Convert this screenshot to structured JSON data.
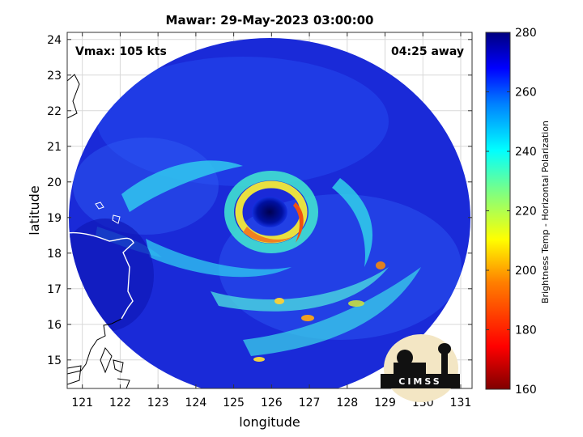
{
  "chart_data": {
    "type": "heatmap",
    "title": "Mawar: 29-May-2023 03:00:00",
    "xlabel": "longitude",
    "ylabel": "latitude",
    "xlim": [
      120.6,
      131.3
    ],
    "ylim": [
      14.2,
      24.2
    ],
    "xticks": [
      121,
      122,
      123,
      124,
      125,
      126,
      127,
      128,
      129,
      130,
      131
    ],
    "yticks": [
      15,
      16,
      17,
      18,
      19,
      20,
      21,
      22,
      23,
      24
    ],
    "grid": true,
    "colorbar": {
      "label": "Brightness Temp - Horizontal Polarization",
      "range": [
        160,
        280
      ],
      "ticks": [
        160,
        180,
        200,
        220,
        240,
        260,
        280
      ],
      "colormap": "jet"
    },
    "storm": {
      "name": "Mawar",
      "center_lon": 126.1,
      "center_lat": 19.1,
      "vmax_label": "Vmax: 105 kts",
      "time_label": "04:25 away"
    }
  },
  "logo": {
    "text": "CIMSS"
  },
  "colors": {
    "background_swath": "#1a2ad8",
    "eye": "#000a78",
    "band_cyan": "#2ed4f0",
    "band_yellow": "#f0e040",
    "band_red": "#e04010"
  }
}
